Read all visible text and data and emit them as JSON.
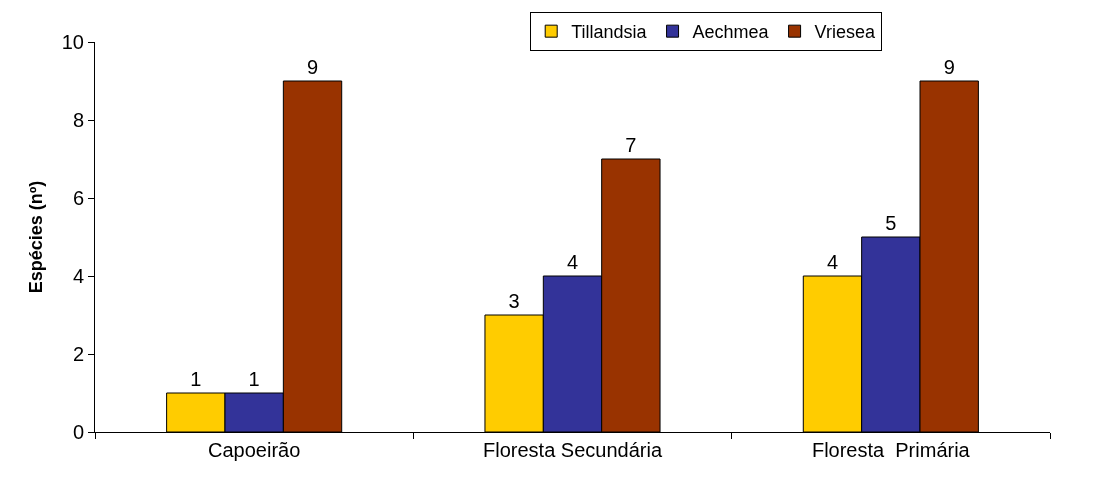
{
  "chart_data": {
    "type": "bar",
    "categories": [
      "Capoeirão",
      "Floresta Secundária",
      "Floresta  Primária"
    ],
    "series": [
      {
        "name": "Tillandsia",
        "color": "#ffcc00",
        "values": [
          1,
          3,
          4
        ]
      },
      {
        "name": "Aechmea",
        "color": "#333399",
        "values": [
          1,
          4,
          5
        ]
      },
      {
        "name": "Vriesea",
        "color": "#993300",
        "values": [
          9,
          7,
          9
        ]
      }
    ],
    "ylabel": "Espécies (nº)",
    "ylim": [
      0,
      10
    ],
    "yticks": [
      0,
      2,
      4,
      6,
      8,
      10
    ],
    "data_labels": true,
    "legend": "top"
  }
}
